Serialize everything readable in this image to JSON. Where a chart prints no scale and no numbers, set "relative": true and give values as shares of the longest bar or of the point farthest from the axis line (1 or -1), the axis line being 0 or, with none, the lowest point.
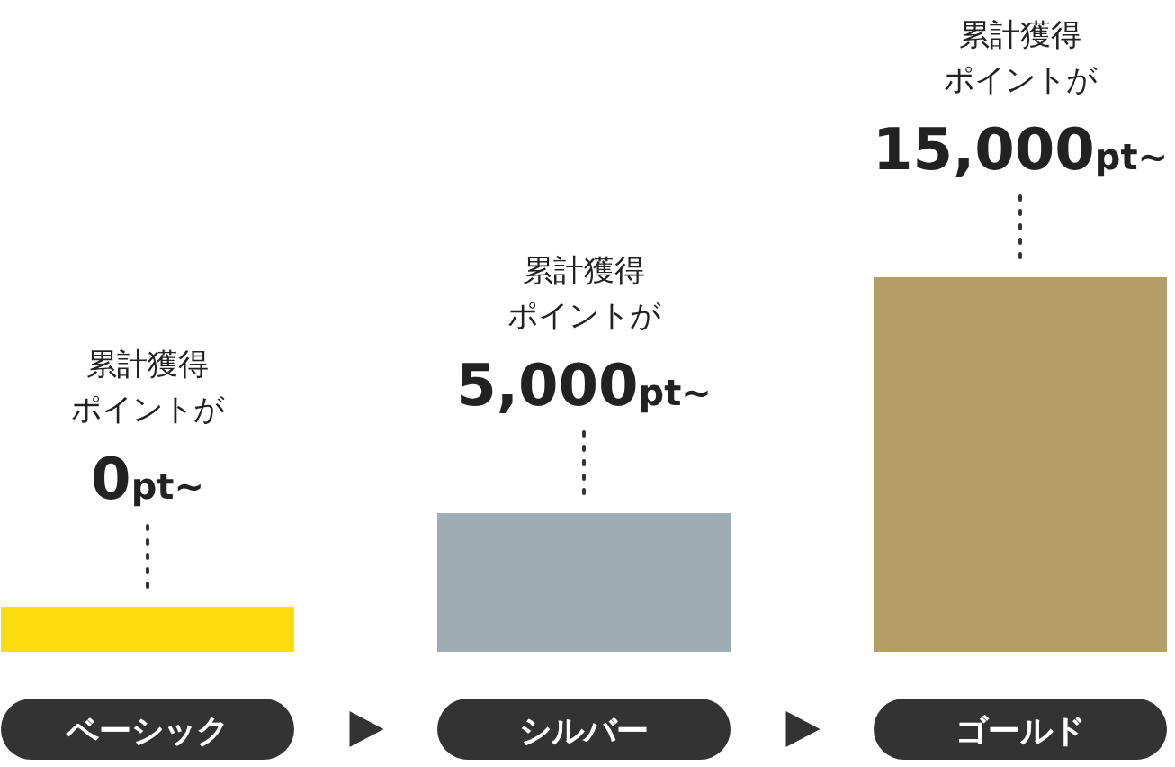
{
  "chart_data": {
    "type": "bar",
    "relative": true,
    "categories": [
      "ベーシック",
      "シルバー",
      "ゴールド"
    ],
    "values": [
      0.12,
      0.37,
      1
    ],
    "colors": [
      "#ffdc0f",
      "#9eacb3",
      "#b59e65"
    ],
    "annotations": [
      "累計獲得",
      "ポイントが",
      {
        "text": "0pt~",
        "x": "ベーシック"
      },
      "累計獲得",
      "ポイントが",
      {
        "text": "5,000pt~",
        "x": "シルバー"
      },
      "累計獲得",
      "ポイントが",
      {
        "text": "15,000pt~",
        "x": "ゴールド"
      }
    ]
  }
}
